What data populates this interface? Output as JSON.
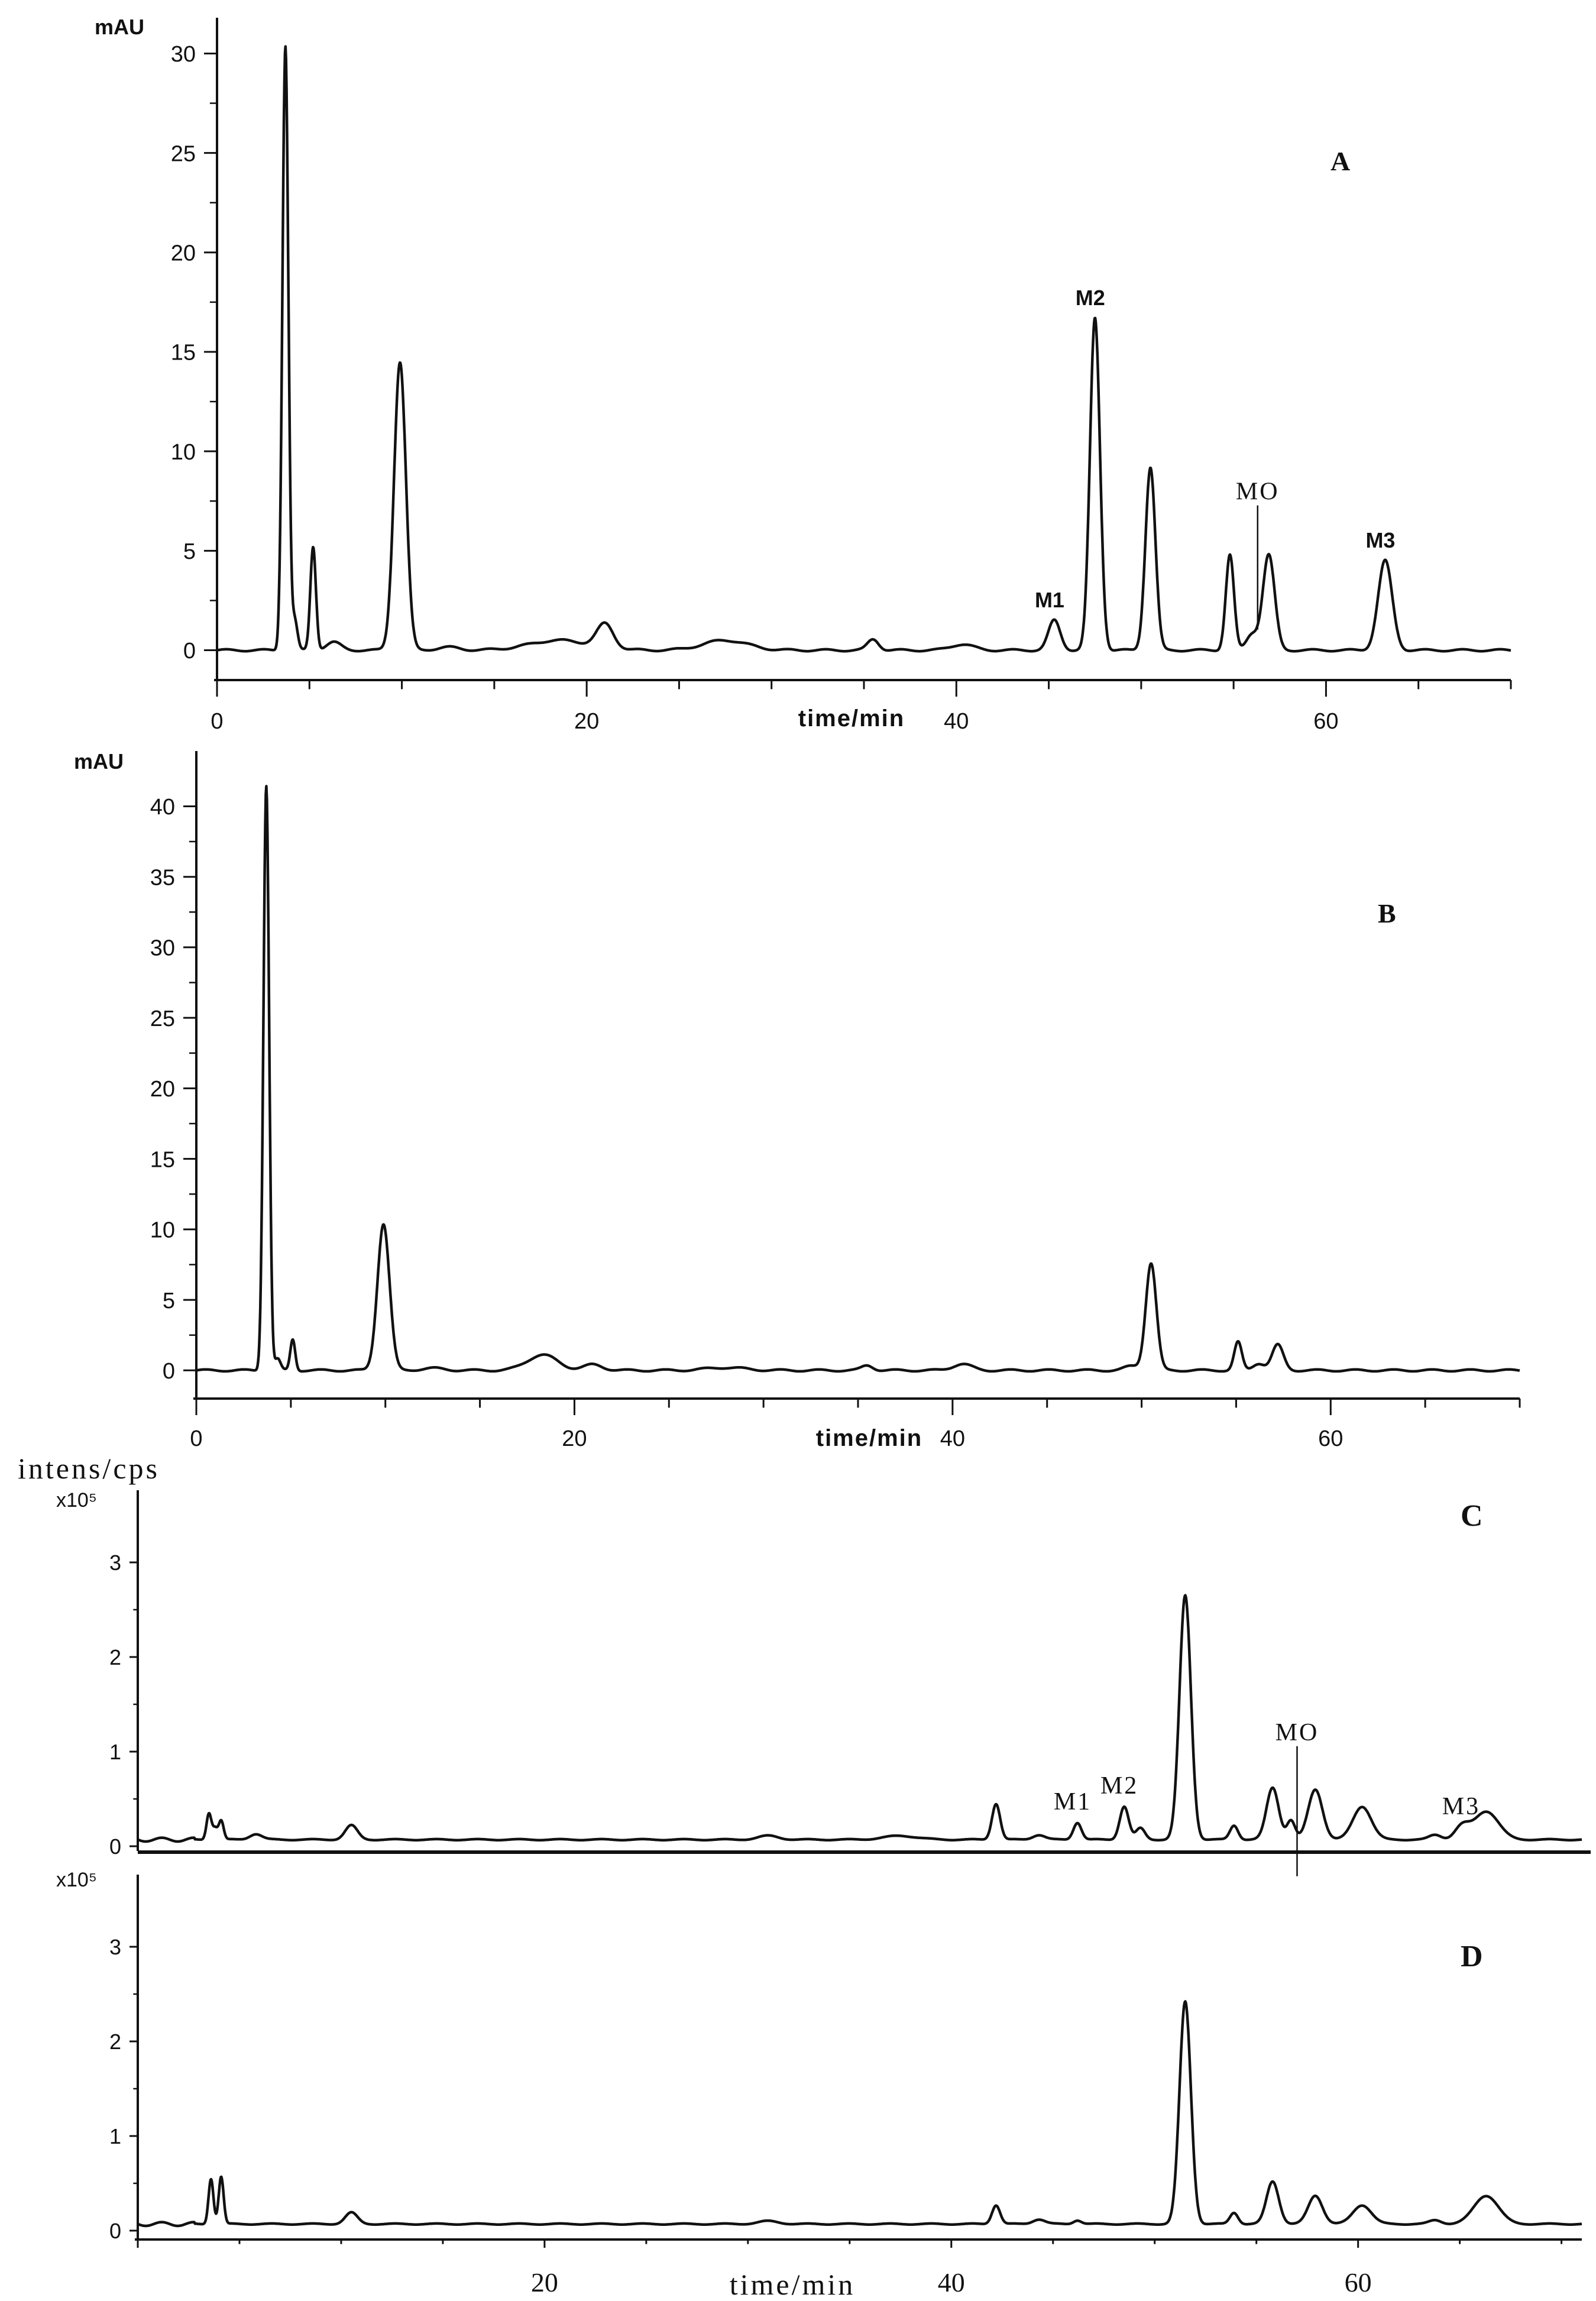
{
  "figure": {
    "title": ""
  },
  "chart_data": [
    {
      "type": "line",
      "panel_label": "A",
      "ylabel": "mAU",
      "xlabel": "time/min",
      "xlim": [
        0,
        70
      ],
      "ylim": [
        -1.5,
        31.5
      ],
      "x_ticks": [
        0,
        20,
        40,
        60
      ],
      "y_ticks": [
        0,
        5,
        10,
        15,
        20,
        25,
        30
      ],
      "grid": false,
      "baseline": 0,
      "peaks": [
        {
          "x": 3.7,
          "h": 30.4,
          "w": 0.16
        },
        {
          "x": 4.2,
          "h": 1.5,
          "w": 0.15
        },
        {
          "x": 5.2,
          "h": 5.2,
          "w": 0.15
        },
        {
          "x": 6.3,
          "h": 0.4,
          "w": 0.4
        },
        {
          "x": 9.9,
          "h": 14.5,
          "w": 0.32
        },
        {
          "x": 12.5,
          "h": 0.15,
          "w": 0.6
        },
        {
          "x": 18.5,
          "h": 0.5,
          "w": 1.6
        },
        {
          "x": 21.0,
          "h": 1.2,
          "w": 0.45
        },
        {
          "x": 27.5,
          "h": 0.5,
          "w": 1.2
        },
        {
          "x": 35.5,
          "h": 0.55,
          "w": 0.3
        },
        {
          "x": 40.3,
          "h": 0.3,
          "w": 0.6
        },
        {
          "x": 45.3,
          "h": 1.5,
          "w": 0.32
        },
        {
          "x": 47.5,
          "h": 16.7,
          "w": 0.27
        },
        {
          "x": 50.5,
          "h": 9.2,
          "w": 0.27
        },
        {
          "x": 54.8,
          "h": 4.8,
          "w": 0.22
        },
        {
          "x": 56.0,
          "h": 0.8,
          "w": 0.3
        },
        {
          "x": 56.9,
          "h": 4.8,
          "w": 0.32
        },
        {
          "x": 63.2,
          "h": 4.5,
          "w": 0.38
        }
      ],
      "annotations": [
        {
          "text": "M1",
          "x": 45.3,
          "y": 1.5,
          "style": "bold"
        },
        {
          "text": "M2",
          "x": 47.5,
          "y": 16.7,
          "style": "bold"
        },
        {
          "text": "MO",
          "x": 56.3,
          "y": 5.2,
          "style": "serif",
          "marker": true
        },
        {
          "text": "M3",
          "x": 63.2,
          "y": 4.5,
          "style": "bold"
        }
      ]
    },
    {
      "type": "line",
      "panel_label": "B",
      "ylabel": "mAU",
      "xlabel": "time/min",
      "xlim": [
        0,
        70
      ],
      "ylim": [
        -2,
        43.5
      ],
      "x_ticks": [
        0,
        20,
        40,
        60
      ],
      "y_ticks": [
        0,
        5,
        10,
        15,
        20,
        25,
        30,
        35,
        40
      ],
      "grid": false,
      "baseline": 0,
      "peaks": [
        {
          "x": 3.7,
          "h": 41.5,
          "w": 0.15
        },
        {
          "x": 4.3,
          "h": 0.8,
          "w": 0.15
        },
        {
          "x": 5.1,
          "h": 2.2,
          "w": 0.13
        },
        {
          "x": 9.9,
          "h": 10.4,
          "w": 0.32
        },
        {
          "x": 12.5,
          "h": 0.15,
          "w": 0.6
        },
        {
          "x": 18.3,
          "h": 1.1,
          "w": 0.8
        },
        {
          "x": 21.0,
          "h": 0.4,
          "w": 0.5
        },
        {
          "x": 28.0,
          "h": 0.2,
          "w": 1.0
        },
        {
          "x": 35.5,
          "h": 0.35,
          "w": 0.3
        },
        {
          "x": 40.5,
          "h": 0.45,
          "w": 0.5
        },
        {
          "x": 49.5,
          "h": 0.3,
          "w": 0.4
        },
        {
          "x": 50.5,
          "h": 7.6,
          "w": 0.28
        },
        {
          "x": 55.1,
          "h": 2.0,
          "w": 0.2
        },
        {
          "x": 56.2,
          "h": 0.5,
          "w": 0.3
        },
        {
          "x": 57.2,
          "h": 1.8,
          "w": 0.3
        }
      ],
      "annotations": []
    },
    {
      "type": "line",
      "panel_label": "C",
      "ylabel": "intens/cps",
      "y_multiplier": "x10⁵",
      "xlabel": "",
      "xlim": [
        0,
        71
      ],
      "ylim": [
        -0.05,
        3.7
      ],
      "x_ticks": [],
      "y_ticks": [
        0,
        1,
        2,
        3
      ],
      "grid": false,
      "baseline": 0.07,
      "peaks": [
        {
          "x": 3.5,
          "h": 0.28,
          "w": 0.12
        },
        {
          "x": 3.8,
          "h": 0.12,
          "w": 0.12
        },
        {
          "x": 4.1,
          "h": 0.2,
          "w": 0.12
        },
        {
          "x": 5.8,
          "h": 0.06,
          "w": 0.3
        },
        {
          "x": 10.5,
          "h": 0.15,
          "w": 0.3
        },
        {
          "x": 31.0,
          "h": 0.04,
          "w": 0.5
        },
        {
          "x": 37.5,
          "h": 0.04,
          "w": 0.8
        },
        {
          "x": 42.2,
          "h": 0.38,
          "w": 0.2
        },
        {
          "x": 44.3,
          "h": 0.05,
          "w": 0.3
        },
        {
          "x": 46.2,
          "h": 0.18,
          "w": 0.2
        },
        {
          "x": 48.5,
          "h": 0.35,
          "w": 0.22
        },
        {
          "x": 49.3,
          "h": 0.12,
          "w": 0.22
        },
        {
          "x": 51.5,
          "h": 2.58,
          "w": 0.28
        },
        {
          "x": 53.9,
          "h": 0.15,
          "w": 0.2
        },
        {
          "x": 55.8,
          "h": 0.55,
          "w": 0.3
        },
        {
          "x": 56.7,
          "h": 0.2,
          "w": 0.2
        },
        {
          "x": 57.9,
          "h": 0.53,
          "w": 0.35
        },
        {
          "x": 60.2,
          "h": 0.35,
          "w": 0.45
        },
        {
          "x": 63.8,
          "h": 0.05,
          "w": 0.3
        },
        {
          "x": 65.1,
          "h": 0.13,
          "w": 0.35
        },
        {
          "x": 66.3,
          "h": 0.3,
          "w": 0.6
        }
      ],
      "annotations": [
        {
          "text": "M1",
          "x": 46.2,
          "y": 0.25,
          "style": "serif"
        },
        {
          "text": "M2",
          "x": 48.5,
          "y": 0.42,
          "style": "serif"
        },
        {
          "text": "MO",
          "x": 57.0,
          "y": 0.62,
          "style": "serif",
          "marker": true
        },
        {
          "text": "M3",
          "x": 65.3,
          "y": 0.2,
          "style": "serif"
        }
      ]
    },
    {
      "type": "line",
      "panel_label": "D",
      "ylabel": "",
      "y_multiplier": "x10⁵",
      "xlabel": "time/min",
      "xlim": [
        0,
        71
      ],
      "ylim": [
        -0.05,
        3.7
      ],
      "x_ticks": [
        20,
        40,
        60
      ],
      "y_ticks": [
        0,
        1,
        2,
        3
      ],
      "grid": false,
      "baseline": 0.07,
      "peaks": [
        {
          "x": 3.6,
          "h": 0.48,
          "w": 0.12
        },
        {
          "x": 4.1,
          "h": 0.5,
          "w": 0.12
        },
        {
          "x": 10.5,
          "h": 0.12,
          "w": 0.3
        },
        {
          "x": 31.0,
          "h": 0.03,
          "w": 0.5
        },
        {
          "x": 42.2,
          "h": 0.2,
          "w": 0.2
        },
        {
          "x": 44.3,
          "h": 0.05,
          "w": 0.3
        },
        {
          "x": 46.2,
          "h": 0.04,
          "w": 0.2
        },
        {
          "x": 51.5,
          "h": 2.35,
          "w": 0.28
        },
        {
          "x": 53.9,
          "h": 0.12,
          "w": 0.2
        },
        {
          "x": 55.8,
          "h": 0.45,
          "w": 0.3
        },
        {
          "x": 57.9,
          "h": 0.3,
          "w": 0.35
        },
        {
          "x": 60.2,
          "h": 0.2,
          "w": 0.45
        },
        {
          "x": 63.8,
          "h": 0.04,
          "w": 0.3
        },
        {
          "x": 66.3,
          "h": 0.3,
          "w": 0.6
        }
      ],
      "annotations": []
    }
  ]
}
